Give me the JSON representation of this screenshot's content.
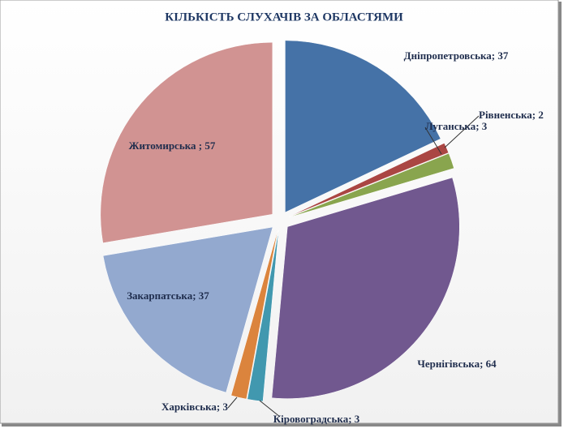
{
  "chart_data": {
    "type": "pie",
    "title": "КІЛЬКІСТЬ СЛУХАЧІВ ЗА ОБЛАСТЯМИ",
    "values": [
      37,
      2,
      3,
      64,
      3,
      3,
      37,
      57
    ],
    "value_labels": [
      "Дніпропетровська; 37",
      "Рівненська; 2",
      "Луганська; 3",
      "Чернігівська; 64",
      "Кіровоградська; 3",
      "Харківська; 3",
      "Закарпатська; 37",
      "Житомирська ; 57"
    ],
    "colors": [
      "#4572a7",
      "#aa4643",
      "#89a54e",
      "#71588f",
      "#4198af",
      "#db843d",
      "#93a9cf",
      "#d19392"
    ]
  }
}
